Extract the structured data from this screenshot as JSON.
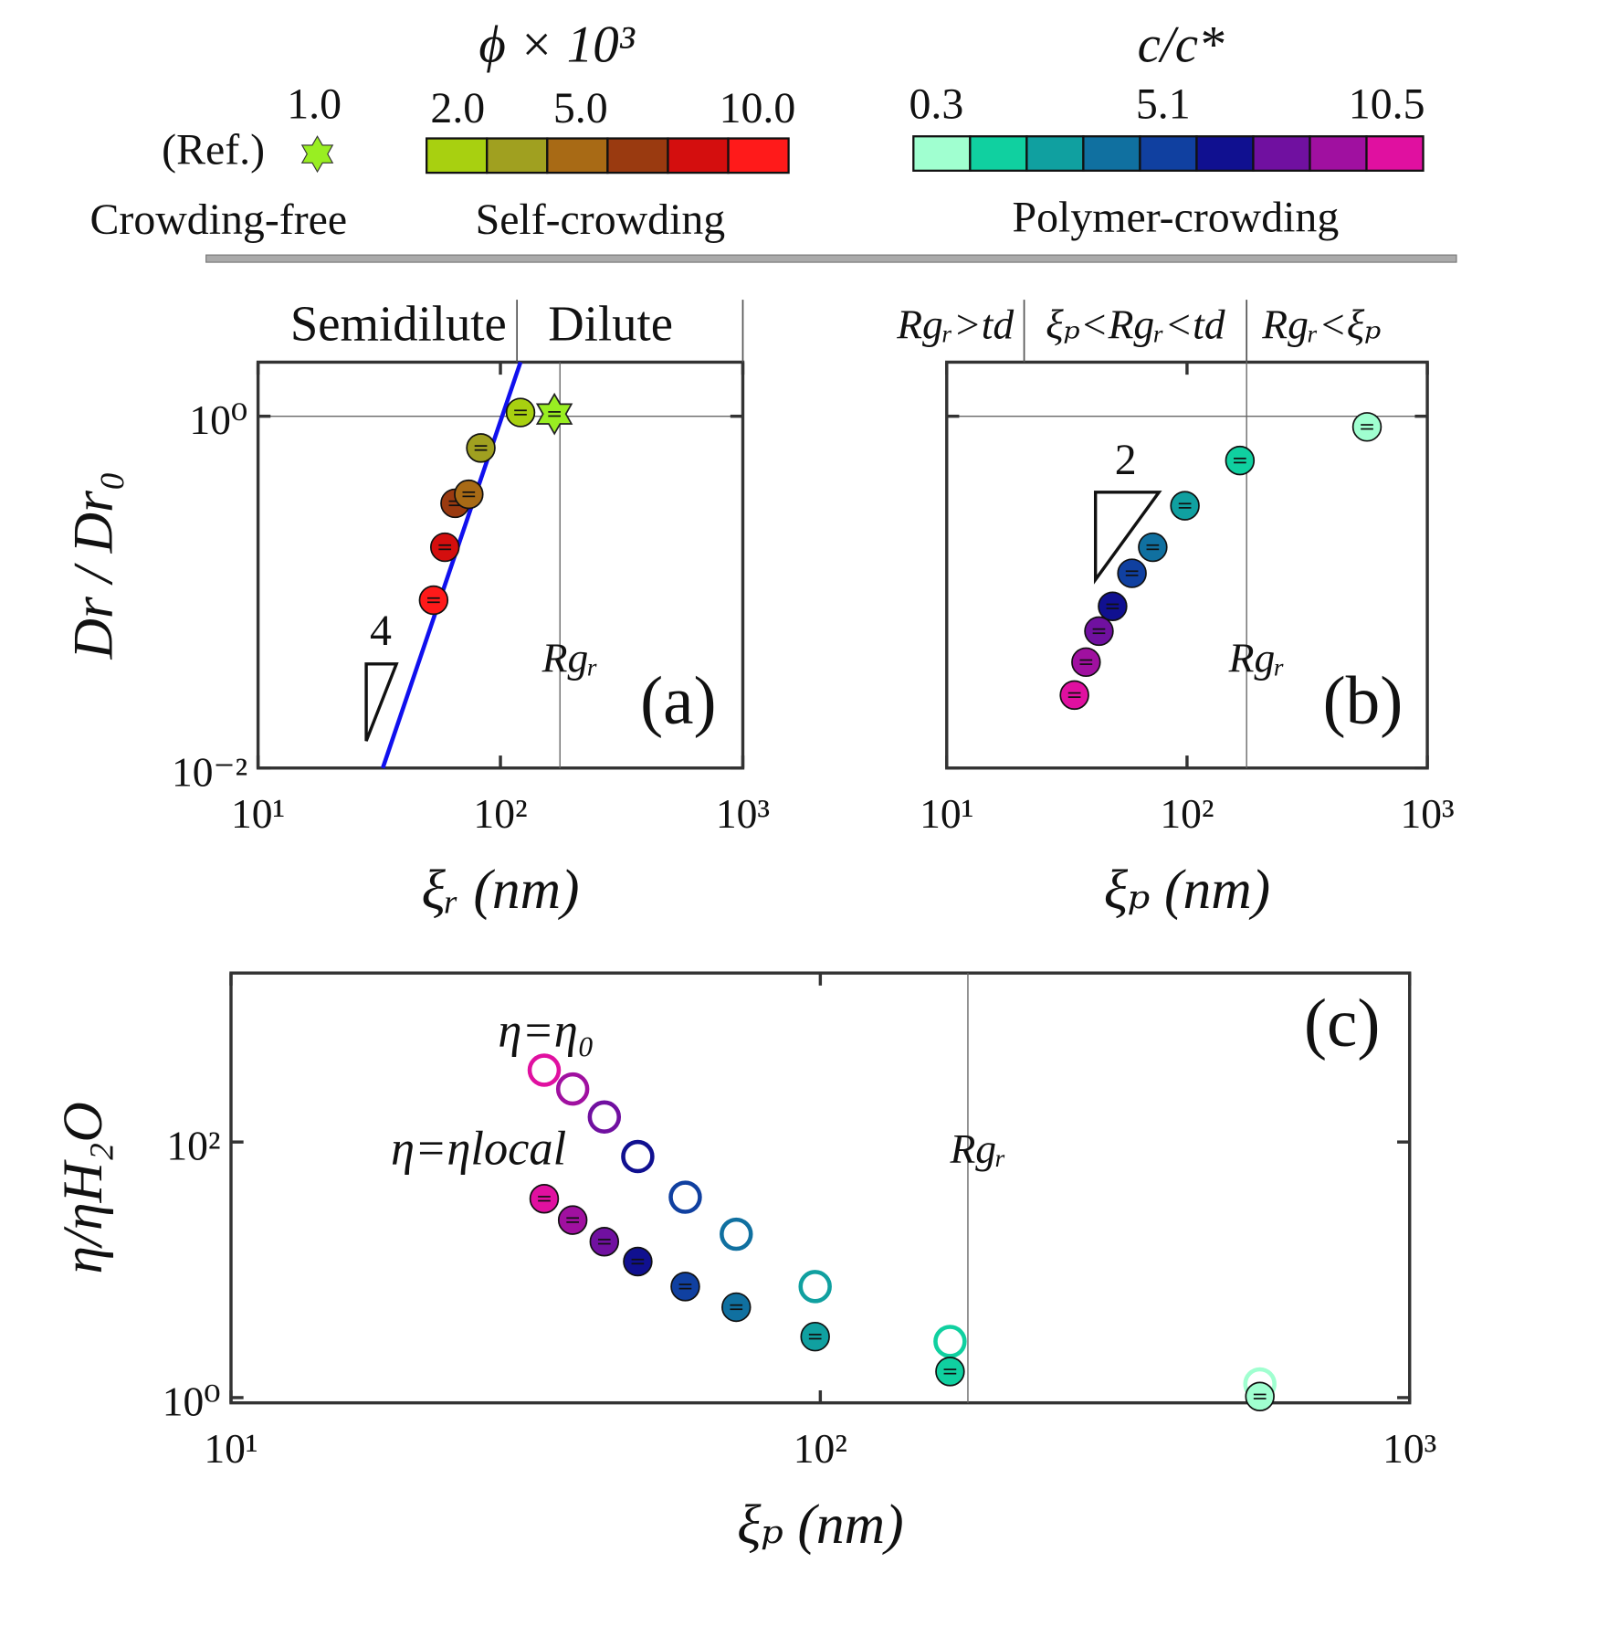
{
  "header": {
    "phi_title": "ϕ × 10³",
    "c_title": "c/c*",
    "ref_value": "1.0",
    "ref_label": "(Ref.)",
    "ref_color": "#99ee22",
    "phi_ticks": [
      "2.0",
      "5.0",
      "10.0"
    ],
    "phi_colors": [
      "#a8d010",
      "#a0a020",
      "#a86a15",
      "#9a3a10",
      "#d40e0e",
      "#ff1a1a"
    ],
    "c_ticks": [
      "0.3",
      "5.1",
      "10.5"
    ],
    "c_colors": [
      "#a0ffd0",
      "#10d0a0",
      "#10a0a0",
      "#1070a0",
      "#1040a0",
      "#101090",
      "#7010a0",
      "#a010a0",
      "#e010a0"
    ],
    "groups": [
      "Crowding-free",
      "Self-crowding",
      "Polymer-crowding"
    ]
  },
  "chart_data": [
    {
      "type": "scatter",
      "panel_label": "(a)",
      "log": true,
      "xlabel": "ξᵣ (nm)",
      "ylabel": "Dr / Dr₀",
      "xlim": [
        10,
        1000
      ],
      "ylim": [
        0.01,
        2.03
      ],
      "xticks": [
        {
          "value": 10,
          "label": "10¹"
        },
        {
          "value": 100,
          "label": "10²"
        },
        {
          "value": 1000,
          "label": "10³"
        }
      ],
      "yticks": [
        {
          "value": 0.01,
          "label": "10⁻²"
        },
        {
          "value": 1,
          "label": "10⁰"
        }
      ],
      "hlines": [
        1
      ],
      "vlines": [
        {
          "value": 176,
          "label": "Rgᵣ"
        }
      ],
      "dividers": [
        117,
        1000
      ],
      "regions": [
        "Semidilute",
        "Dilute"
      ],
      "slope_label": "4",
      "series": [
        {
          "marker": "line",
          "color": "#1010ee",
          "x": [
            32.7,
            121
          ],
          "values": [
            0.01,
            2.03
          ]
        },
        {
          "marker": "circle",
          "x": [
            53,
            59,
            65,
            74,
            83,
            121
          ],
          "values": [
            0.09,
            0.18,
            0.32,
            0.36,
            0.66,
            1.05
          ],
          "colors": [
            "#ff1a1a",
            "#d40e0e",
            "#9a3a10",
            "#a86a15",
            "#a0a020",
            "#a8d010"
          ]
        },
        {
          "marker": "star",
          "x": [
            167
          ],
          "values": [
            1.03
          ],
          "colors": [
            "#99ee22"
          ]
        }
      ]
    },
    {
      "type": "scatter",
      "panel_label": "(b)",
      "log": true,
      "xlabel": "ξₚ (nm)",
      "xlim": [
        10,
        1000
      ],
      "ylim": [
        0.01,
        2.03
      ],
      "xticks": [
        {
          "value": 10,
          "label": "10¹"
        },
        {
          "value": 100,
          "label": "10²"
        },
        {
          "value": 1000,
          "label": "10³"
        }
      ],
      "yticks": [
        0.01,
        1
      ],
      "hlines": [
        1
      ],
      "vlines": [
        {
          "value": 177,
          "label": "Rgᵣ"
        }
      ],
      "dividers": [
        21,
        177
      ],
      "regions": [
        "Rgᵣ>td",
        "ξₚ<Rgᵣ<td",
        "Rgᵣ<ξₚ"
      ],
      "slope_label": "2",
      "series": [
        {
          "marker": "circle",
          "x": [
            34,
            38,
            43,
            49,
            59,
            72,
            98,
            166,
            561
          ],
          "values": [
            0.026,
            0.04,
            0.06,
            0.083,
            0.128,
            0.18,
            0.31,
            0.56,
            0.87
          ],
          "colors": [
            "#e010a0",
            "#a010a0",
            "#7010a0",
            "#101090",
            "#1040a0",
            "#1070a0",
            "#10a0a0",
            "#10d0a0",
            "#a0ffd0"
          ]
        }
      ]
    },
    {
      "type": "scatter",
      "panel_label": "(c)",
      "log": true,
      "xlabel": "ξₚ (nm)",
      "ylabel": "η/ηH₂O",
      "xlim": [
        10,
        1000
      ],
      "ylim": [
        0.91,
        2100
      ],
      "xticks": [
        {
          "value": 10,
          "label": "10¹"
        },
        {
          "value": 100,
          "label": "10²"
        },
        {
          "value": 1000,
          "label": "10³"
        }
      ],
      "yticks": [
        {
          "value": 1,
          "label": "10⁰"
        },
        {
          "value": 100,
          "label": "10²"
        }
      ],
      "vlines": [
        {
          "value": 178,
          "label": "Rgᵣ"
        }
      ],
      "series": [
        {
          "name": "η=η₀",
          "marker": "open-circle",
          "x": [
            34,
            38,
            43,
            49,
            59,
            72,
            98,
            166,
            557
          ],
          "values": [
            365,
            260,
            157,
            77,
            37,
            19,
            7.4,
            2.75,
            1.28
          ],
          "colors": [
            "#e010a0",
            "#a010a0",
            "#7010a0",
            "#101090",
            "#1040a0",
            "#1070a0",
            "#10a0a0",
            "#10d0a0",
            "#a0ffd0"
          ]
        },
        {
          "name": "η=ηlocal",
          "marker": "circle",
          "x": [
            34,
            38,
            43,
            49,
            59,
            72,
            98,
            166,
            557
          ],
          "values": [
            36,
            24.5,
            16.6,
            11.6,
            7.4,
            5.1,
            3.0,
            1.6,
            1.02
          ],
          "colors": [
            "#e010a0",
            "#a010a0",
            "#7010a0",
            "#101090",
            "#1040a0",
            "#1070a0",
            "#10a0a0",
            "#10d0a0",
            "#a0ffd0"
          ]
        }
      ]
    }
  ]
}
